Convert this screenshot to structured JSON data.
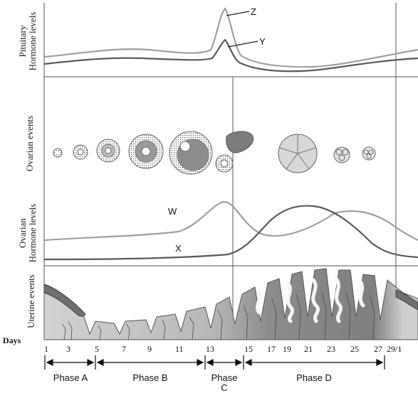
{
  "panels": {
    "pituitary": {
      "label_line1": "Pituitary",
      "label_line2": "Hormone levels"
    },
    "ovarian_events": {
      "label": "Ovarian events"
    },
    "ovarian_hormones": {
      "label_line1": "Ovarian",
      "label_line2": "Hormone levels"
    },
    "uterine_events": {
      "label": "Uterine events"
    }
  },
  "curve_labels": {
    "z": "Z",
    "y": "Y",
    "w": "W",
    "x": "X"
  },
  "days": {
    "title": "Days",
    "ticks": [
      "1",
      "3",
      "5",
      "7",
      "9",
      "11",
      "13",
      "15",
      "17",
      "19",
      "21",
      "23",
      "25",
      "27",
      "29/1"
    ]
  },
  "phases": [
    {
      "line1": "Phase A",
      "line2": ""
    },
    {
      "line1": "Phase B",
      "line2": ""
    },
    {
      "line1": "Phase",
      "line2": "C"
    },
    {
      "line1": "Phase D",
      "line2": ""
    }
  ],
  "colors": {
    "curve_light": "#a0a0a0",
    "curve_dark": "#5a5a5a",
    "frame": "#555555",
    "endometrium_light": "#c8c8c8",
    "endometrium_dark": "#8e8e8e",
    "follicle": "#9a9a9a",
    "menses": "#6f6f6f"
  }
}
